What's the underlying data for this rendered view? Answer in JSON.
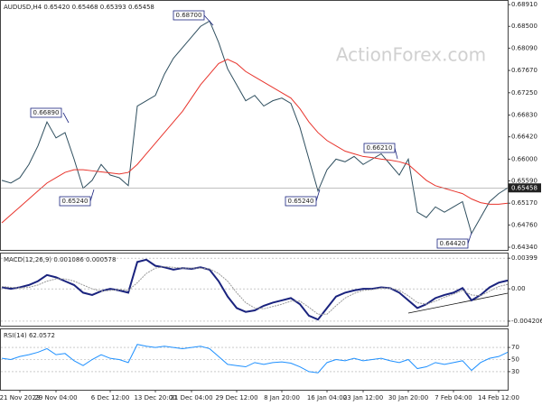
{
  "chart_data": [
    {
      "type": "line",
      "title": "AUDUSD,H4  0.65420 0.65468 0.65393 0.65458",
      "watermark": "ActionForex.com",
      "categories": [
        null,
        null,
        "21 Nov 2023",
        null,
        null,
        null,
        "29 Nov 04:00",
        null,
        null,
        null,
        null,
        null,
        "6 Dec 12:00",
        null,
        null,
        null,
        null,
        "13 Dec 20:00",
        null,
        null,
        null,
        "21 Dec 04:00",
        null,
        null,
        null,
        null,
        "29 Dec 12:00",
        null,
        null,
        null,
        null,
        "8 Jan 20:00",
        null,
        null,
        null,
        null,
        "16 Jan 04:00",
        null,
        null,
        null,
        "23 Jan 12:00",
        null,
        null,
        null,
        null,
        "30 Jan 20:00",
        null,
        null,
        null,
        null,
        "7 Feb 04:00",
        null,
        null,
        null,
        null,
        "14 Feb 12:00",
        null
      ],
      "series": [
        {
          "color": "#2f4f5f",
          "values": [
            0.656,
            0.6555,
            0.6565,
            0.659,
            0.6625,
            0.667,
            0.664,
            0.665,
            0.66,
            0.6545,
            0.656,
            0.659,
            0.657,
            0.6565,
            0.655,
            0.67,
            0.671,
            0.672,
            0.676,
            0.679,
            0.681,
            0.683,
            0.685,
            0.686,
            0.682,
            0.677,
            0.674,
            0.671,
            0.672,
            0.67,
            0.671,
            0.6715,
            0.6705,
            0.666,
            0.66,
            0.654,
            0.658,
            0.66,
            0.6595,
            0.6605,
            0.659,
            0.66,
            0.661,
            0.659,
            0.657,
            0.66,
            0.65,
            0.649,
            0.651,
            0.65,
            0.651,
            0.652,
            0.646,
            0.649,
            0.652,
            0.6535,
            0.65458
          ]
        },
        {
          "color": "#e8342c",
          "values": [
            0.648,
            0.6495,
            0.651,
            0.6525,
            0.654,
            0.6555,
            0.6565,
            0.6575,
            0.658,
            0.658,
            0.6578,
            0.6576,
            0.6574,
            0.6572,
            0.6575,
            0.659,
            0.661,
            0.663,
            0.665,
            0.667,
            0.669,
            0.6715,
            0.674,
            0.676,
            0.678,
            0.6788,
            0.678,
            0.6765,
            0.6755,
            0.6745,
            0.6735,
            0.6725,
            0.6715,
            0.6695,
            0.667,
            0.665,
            0.6635,
            0.6625,
            0.6615,
            0.661,
            0.6605,
            0.6603,
            0.66,
            0.6598,
            0.6595,
            0.659,
            0.6575,
            0.656,
            0.655,
            0.6545,
            0.654,
            0.6535,
            0.6525,
            0.6518,
            0.6515,
            0.6515,
            0.6517
          ]
        }
      ],
      "annotations": [
        "0.68700",
        "0.66890",
        "0.65240",
        "0.65240",
        "0.66210",
        "0.64420"
      ],
      "ylim": [
        0.6429,
        0.6898
      ],
      "yticks": [
        {
          "value": 0.6891,
          "label": "0.68910"
        },
        {
          "value": 0.685,
          "label": "0.68500"
        },
        {
          "value": 0.6809,
          "label": "0.68090"
        },
        {
          "value": 0.6767,
          "label": "0.67670"
        },
        {
          "value": 0.6725,
          "label": "0.67250"
        },
        {
          "value": 0.6683,
          "label": "0.66830"
        },
        {
          "value": 0.6642,
          "label": "0.66420"
        },
        {
          "value": 0.66,
          "label": "0.66000"
        },
        {
          "value": 0.6559,
          "label": "0.65590"
        },
        {
          "value": 0.6517,
          "label": "0.65170"
        },
        {
          "value": 0.6476,
          "label": "0.64760"
        },
        {
          "value": 0.6434,
          "label": "0.64340"
        }
      ]
    },
    {
      "type": "line",
      "title": "MACD(12,26,9) 0.001086 0.000578",
      "series": [
        {
          "color": "#1a237e",
          "values": [
            0.0002,
            0.0,
            0.0002,
            0.0005,
            0.001,
            0.0018,
            0.0015,
            0.001,
            0.0005,
            -0.0005,
            -0.0008,
            -0.0003,
            0.0,
            -0.0002,
            -0.0005,
            0.0035,
            0.0038,
            0.003,
            0.0028,
            0.0025,
            0.0027,
            0.0026,
            0.0028,
            0.0025,
            0.001,
            -0.001,
            -0.0025,
            -0.003,
            -0.0028,
            -0.0022,
            -0.0018,
            -0.0015,
            -0.0012,
            -0.002,
            -0.0035,
            -0.004,
            -0.0025,
            -0.001,
            -0.0005,
            -0.0002,
            0.0,
            0.0,
            0.0002,
            0.0001,
            -0.0005,
            -0.0015,
            -0.0025,
            -0.002,
            -0.0012,
            -0.0008,
            -0.0005,
            0.0001,
            -0.0015,
            -0.0008,
            0.0002,
            0.0008,
            0.001086
          ]
        },
        {
          "color": "#999999",
          "values": [
            0.0003,
            0.0002,
            0.0001,
            0.0002,
            0.0005,
            0.001,
            0.0013,
            0.0013,
            0.001,
            0.0005,
            0.0,
            -0.0003,
            -0.0002,
            -0.0001,
            -0.0002,
            0.0008,
            0.002,
            0.0027,
            0.0029,
            0.0028,
            0.0027,
            0.0027,
            0.0027,
            0.0026,
            0.002,
            0.001,
            -0.0005,
            -0.0018,
            -0.0025,
            -0.0026,
            -0.0023,
            -0.002,
            -0.0016,
            -0.0016,
            -0.0024,
            -0.0033,
            -0.0033,
            -0.0022,
            -0.0012,
            -0.0006,
            -0.0002,
            -0.0001,
            0.0001,
            0.0001,
            -0.0002,
            -0.0009,
            -0.0018,
            -0.002,
            -0.0016,
            -0.0011,
            -0.0007,
            -0.0002,
            -0.0008,
            -0.0009,
            -0.0003,
            0.0003,
            0.000578
          ]
        }
      ],
      "ylim": [
        -0.0048,
        0.0046
      ],
      "yticks": [
        0.00399,
        {
          "value": 0,
          "label": "0.00"
        },
        -0.004206
      ]
    },
    {
      "type": "line",
      "title": "RSI(14) 62.0572",
      "series": [
        {
          "color": "#1e90ff",
          "values": [
            52,
            50,
            55,
            58,
            62,
            68,
            58,
            60,
            48,
            40,
            50,
            58,
            52,
            50,
            45,
            75,
            72,
            70,
            72,
            70,
            68,
            70,
            72,
            68,
            55,
            42,
            40,
            38,
            45,
            42,
            45,
            46,
            44,
            38,
            30,
            28,
            45,
            50,
            48,
            52,
            48,
            50,
            52,
            48,
            45,
            50,
            35,
            38,
            45,
            42,
            45,
            48,
            32,
            45,
            52,
            55,
            62.0572
          ]
        }
      ],
      "ylim": [
        0,
        100
      ],
      "yticks": [
        70,
        50,
        30
      ]
    }
  ]
}
